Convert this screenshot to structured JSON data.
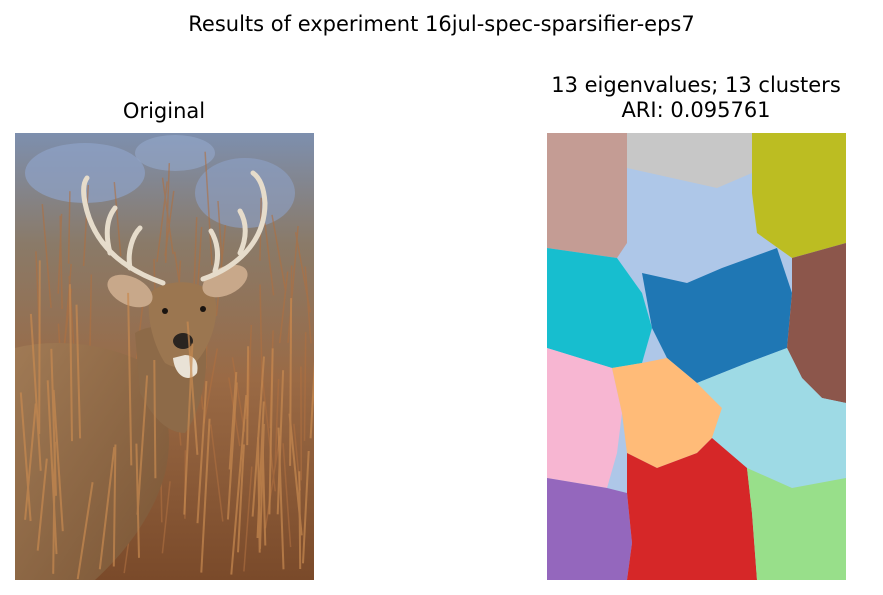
{
  "figure": {
    "suptitle": "Results of experiment 16jul-spec-sparsifier-eps7"
  },
  "left_panel": {
    "title": "Original",
    "image_description": "deer"
  },
  "right_panel": {
    "title_line1": "13 eigenvalues; 13 clusters",
    "title_line2": "ARI: 0.095761",
    "cluster_colors": [
      "#c49c94",
      "#c7c7c7",
      "#bcbd22",
      "#aec7e8",
      "#17becf",
      "#1f77b4",
      "#8c564b",
      "#f7b6d2",
      "#ffbb78",
      "#9edae5",
      "#9467bd",
      "#d62728",
      "#98df8a"
    ]
  }
}
